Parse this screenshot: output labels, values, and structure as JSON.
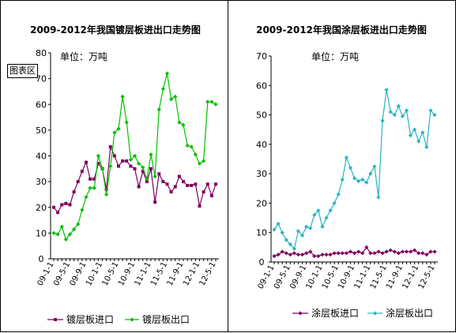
{
  "tooltip": "图表区",
  "chart_data": [
    {
      "type": "line",
      "title": "2009-2012年我国镀层板进出口走势图",
      "unit_label": "单位：万吨",
      "ylim": [
        0,
        80
      ],
      "yticks": [
        0,
        10,
        20,
        30,
        40,
        50,
        60,
        70,
        80
      ],
      "x_tick_labels": [
        "09-1-1",
        "09-5-1",
        "09-9-1",
        "10-1-1",
        "10-5-1",
        "10-9-1",
        "11-1-1",
        "11-5-1",
        "11-9-1",
        "12-1-1",
        "12-5-1"
      ],
      "legend_position": "bottom",
      "series": [
        {
          "name": "镀层板进口",
          "color": "#800060",
          "marker": "square",
          "values": [
            20,
            18,
            21,
            21.5,
            21,
            26,
            30,
            34,
            37.5,
            31,
            31,
            37,
            35,
            27,
            43.5,
            40,
            36,
            38,
            38,
            36,
            35,
            28,
            34,
            30,
            35,
            22,
            33,
            30,
            29,
            26,
            28,
            32,
            30,
            28.5,
            28.5,
            29,
            20.5,
            26,
            29,
            24.5,
            29
          ]
        },
        {
          "name": "镀层板出口",
          "color": "#00c000",
          "marker": "diamond",
          "values": [
            10,
            9.5,
            12.5,
            7.5,
            9.5,
            11.5,
            13.5,
            19,
            24,
            27.5,
            27.5,
            40,
            35,
            25,
            36,
            49,
            50.5,
            63,
            53,
            38.5,
            40,
            37,
            35.5,
            31,
            40.5,
            32,
            58,
            66,
            72,
            62,
            63,
            53,
            52,
            44,
            43.5,
            40.5,
            37,
            38,
            61,
            61,
            60
          ]
        }
      ]
    },
    {
      "type": "line",
      "title": "2009-2012年我国涂层板进出口走势图",
      "unit_label": "单位：万吨",
      "ylim": [
        0,
        70
      ],
      "yticks": [
        0,
        10,
        20,
        30,
        40,
        50,
        60,
        70
      ],
      "x_tick_labels": [
        "09-1-1",
        "09-5-1",
        "09-9-1",
        "10-1-1",
        "10-5-1",
        "10-9-1",
        "11-1-1",
        "11-5-1",
        "11-9-1",
        "12-1-1",
        "12-5-1"
      ],
      "legend_position": "bottom",
      "series": [
        {
          "name": "涂层板进口",
          "color": "#800060",
          "marker": "diamond",
          "values": [
            2,
            2.5,
            3.5,
            3,
            2.5,
            3,
            2.5,
            2.5,
            3,
            3.5,
            2,
            2,
            2.5,
            2.5,
            2.5,
            3,
            3,
            3,
            3,
            3.5,
            3,
            3.5,
            3,
            5,
            3,
            3,
            3.5,
            3,
            3.5,
            4,
            3.5,
            3,
            3.5,
            3.5,
            3.5,
            4,
            3,
            3,
            2.5,
            3.5,
            3.5
          ]
        },
        {
          "name": "涂层板出口",
          "color": "#2ab4c0",
          "marker": "diamond",
          "values": [
            11,
            13,
            10,
            7.5,
            6,
            4.5,
            10.5,
            9,
            12,
            11.5,
            16,
            17.5,
            12,
            15,
            17.5,
            20,
            23,
            28,
            35.5,
            32,
            28.5,
            27.5,
            28,
            27,
            30,
            32.5,
            22,
            48,
            58.5,
            51,
            50,
            53,
            49.5,
            51.5,
            43,
            45,
            41,
            44,
            39,
            51.5,
            50
          ]
        }
      ]
    }
  ]
}
